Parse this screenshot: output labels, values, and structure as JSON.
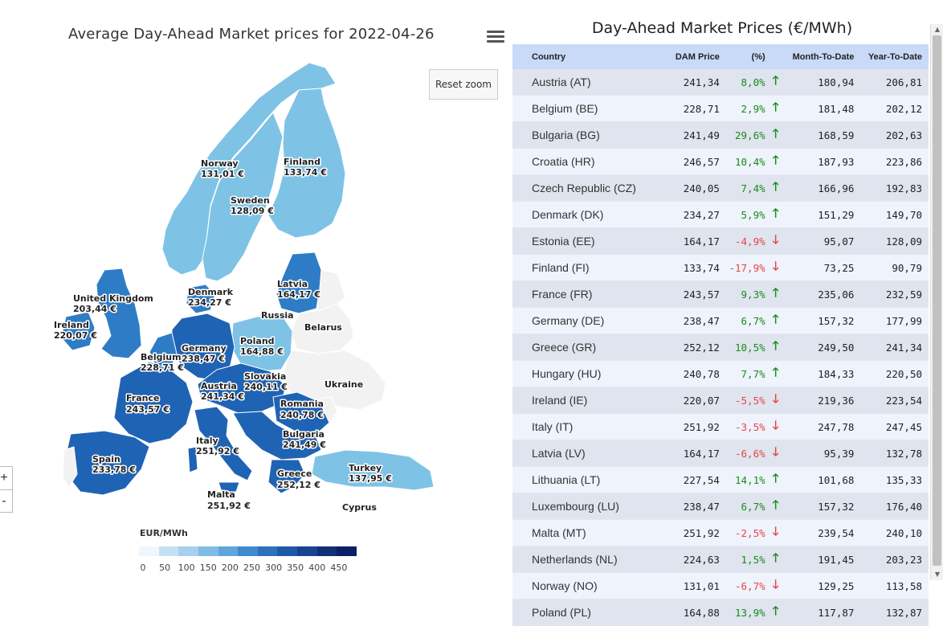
{
  "map": {
    "title": "Average Day-Ahead Market prices for 2022-04-26",
    "reset_zoom_label": "Reset zoom",
    "zoom_in_label": "+",
    "zoom_out_label": "-",
    "menu_icon": "hamburger-menu-icon",
    "labels": {
      "norway": {
        "name": "Norway",
        "value": "131,01 €"
      },
      "finland": {
        "name": "Finland",
        "value": "133,74 €"
      },
      "sweden": {
        "name": "Sweden",
        "value": "128,09 €"
      },
      "denmark": {
        "name": "Denmark",
        "value": "234,27 €"
      },
      "latvia": {
        "name": "Latvia",
        "value": "164,17 €"
      },
      "uk": {
        "name": "United Kingdom",
        "value": "203,44 €"
      },
      "ireland": {
        "name": "Ireland",
        "value": "220,07 €"
      },
      "russia": {
        "name": "Russia"
      },
      "belarus": {
        "name": "Belarus"
      },
      "poland": {
        "name": "Poland",
        "value": "164,88 €"
      },
      "germany": {
        "name": "Germany",
        "value": "238,47 €"
      },
      "belgium": {
        "name": "Belgium",
        "value": "228,71 €"
      },
      "slovakia": {
        "name": "Slovakia",
        "value": "240,11 €"
      },
      "ukraine": {
        "name": "Ukraine"
      },
      "austria": {
        "name": "Austria",
        "value": "241,34 €"
      },
      "france": {
        "name": "France",
        "value": "243,57 €"
      },
      "romania": {
        "name": "Romania",
        "value": "240,78 €"
      },
      "bulgaria": {
        "name": "Bulgaria",
        "value": "241,49 €"
      },
      "italy": {
        "name": "Italy",
        "value": "251,92 €"
      },
      "spain": {
        "name": "Spain",
        "value": "233,78 €"
      },
      "turkey": {
        "name": "Turkey",
        "value": "137,95 €"
      },
      "greece": {
        "name": "Greece",
        "value": "252,12 €"
      },
      "malta": {
        "name": "Malta",
        "value": "251,92 €"
      },
      "cyprus": {
        "name": "Cyprus"
      }
    },
    "legend": {
      "title": "EUR/MWh",
      "ticks": [
        "0",
        "50",
        "100",
        "150",
        "200",
        "250",
        "300",
        "350",
        "400",
        "450"
      ],
      "colors": [
        "#f0f7fc",
        "#c6e0f3",
        "#a6d0ee",
        "#7fbde6",
        "#5ea6dc",
        "#3f8bd0",
        "#2c72be",
        "#1e5aa8",
        "#17458f",
        "#122f78",
        "#0c1f66"
      ]
    },
    "colors": {
      "low": "#7ec3e6",
      "mid": "#2e7cc6",
      "high": "#1f63b4",
      "no_data": "#f2f2f2",
      "border": "#ffffff"
    }
  },
  "table": {
    "title": "Day-Ahead Market Prices (€/MWh)",
    "headers": {
      "country": "Country",
      "dam_price": "DAM Price",
      "pct": "(%)",
      "mtd": "Month-To-Date",
      "ytd": "Year-To-Date"
    },
    "rows": [
      {
        "country": "Austria (AT)",
        "price": "241,34",
        "pct": "8,0%",
        "dir": "up",
        "mtd": "180,94",
        "ytd": "206,81"
      },
      {
        "country": "Belgium (BE)",
        "price": "228,71",
        "pct": "2,9%",
        "dir": "up",
        "mtd": "181,48",
        "ytd": "202,12"
      },
      {
        "country": "Bulgaria (BG)",
        "price": "241,49",
        "pct": "29,6%",
        "dir": "up",
        "mtd": "168,59",
        "ytd": "202,63"
      },
      {
        "country": "Croatia (HR)",
        "price": "246,57",
        "pct": "10,4%",
        "dir": "up",
        "mtd": "187,93",
        "ytd": "223,86"
      },
      {
        "country": "Czech Republic (CZ)",
        "price": "240,05",
        "pct": "7,4%",
        "dir": "up",
        "mtd": "166,96",
        "ytd": "192,83"
      },
      {
        "country": "Denmark (DK)",
        "price": "234,27",
        "pct": "5,9%",
        "dir": "up",
        "mtd": "151,29",
        "ytd": "149,70"
      },
      {
        "country": "Estonia (EE)",
        "price": "164,17",
        "pct": "-4,9%",
        "dir": "down",
        "mtd": "95,07",
        "ytd": "128,09"
      },
      {
        "country": "Finland (FI)",
        "price": "133,74",
        "pct": "-17,9%",
        "dir": "down",
        "mtd": "73,25",
        "ytd": "90,79"
      },
      {
        "country": "France (FR)",
        "price": "243,57",
        "pct": "9,3%",
        "dir": "up",
        "mtd": "235,06",
        "ytd": "232,59"
      },
      {
        "country": "Germany (DE)",
        "price": "238,47",
        "pct": "6,7%",
        "dir": "up",
        "mtd": "157,32",
        "ytd": "177,99"
      },
      {
        "country": "Greece (GR)",
        "price": "252,12",
        "pct": "10,5%",
        "dir": "up",
        "mtd": "249,50",
        "ytd": "241,34"
      },
      {
        "country": "Hungary (HU)",
        "price": "240,78",
        "pct": "7,7%",
        "dir": "up",
        "mtd": "184,33",
        "ytd": "220,50"
      },
      {
        "country": "Ireland (IE)",
        "price": "220,07",
        "pct": "-5,5%",
        "dir": "down",
        "mtd": "219,36",
        "ytd": "223,54"
      },
      {
        "country": "Italy (IT)",
        "price": "251,92",
        "pct": "-3,5%",
        "dir": "down",
        "mtd": "247,78",
        "ytd": "247,45"
      },
      {
        "country": "Latvia (LV)",
        "price": "164,17",
        "pct": "-6,6%",
        "dir": "down",
        "mtd": "95,39",
        "ytd": "132,78"
      },
      {
        "country": "Lithuania (LT)",
        "price": "227,54",
        "pct": "14,1%",
        "dir": "up",
        "mtd": "101,68",
        "ytd": "135,33"
      },
      {
        "country": "Luxembourg (LU)",
        "price": "238,47",
        "pct": "6,7%",
        "dir": "up",
        "mtd": "157,32",
        "ytd": "176,40"
      },
      {
        "country": "Malta (MT)",
        "price": "251,92",
        "pct": "-2,5%",
        "dir": "down",
        "mtd": "239,54",
        "ytd": "240,10"
      },
      {
        "country": "Netherlands (NL)",
        "price": "224,63",
        "pct": "1,5%",
        "dir": "up",
        "mtd": "191,45",
        "ytd": "203,23"
      },
      {
        "country": "Norway (NO)",
        "price": "131,01",
        "pct": "-6,7%",
        "dir": "down",
        "mtd": "129,25",
        "ytd": "113,58"
      },
      {
        "country": "Poland (PL)",
        "price": "164,88",
        "pct": "13,9%",
        "dir": "up",
        "mtd": "117,87",
        "ytd": "132,87"
      }
    ],
    "arrow_up": "🡑",
    "arrow_down": "🡓",
    "colors": {
      "header": "#c9daf8",
      "row_odd": "#dfe4ee",
      "row_even": "#eef3fc",
      "positive": "#1a8a1a",
      "negative": "#e84545"
    }
  }
}
